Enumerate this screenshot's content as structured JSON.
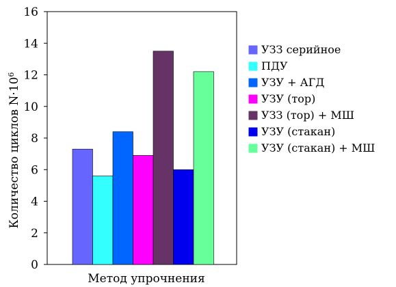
{
  "chart_data": {
    "type": "bar",
    "title": "",
    "xlabel": "Метод упрочнения",
    "ylabel": "Количество циклов N·10",
    "ylabel_sup": "6",
    "ylim": [
      0,
      16
    ],
    "yticks": [
      "0",
      "2",
      "4",
      "6",
      "8",
      "10",
      "12",
      "14",
      "16"
    ],
    "grid": false,
    "legend_position": "right",
    "series": [
      {
        "name": "УЗЗ серийное",
        "value": 7.3,
        "color": "#6666ff"
      },
      {
        "name": "ПДУ",
        "value": 5.6,
        "color": "#33ffff"
      },
      {
        "name": "УЗУ + АГД",
        "value": 8.4,
        "color": "#0066ff"
      },
      {
        "name": "УЗУ (тор)",
        "value": 6.9,
        "color": "#ff00ff"
      },
      {
        "name": "УЗЗ (тор) + МШ",
        "value": 13.5,
        "color": "#663366"
      },
      {
        "name": "УЗУ (стакан)",
        "value": 6.0,
        "color": "#0000ee"
      },
      {
        "name": "УЗУ (стакан) + МШ",
        "value": 12.2,
        "color": "#66ff99"
      }
    ]
  }
}
